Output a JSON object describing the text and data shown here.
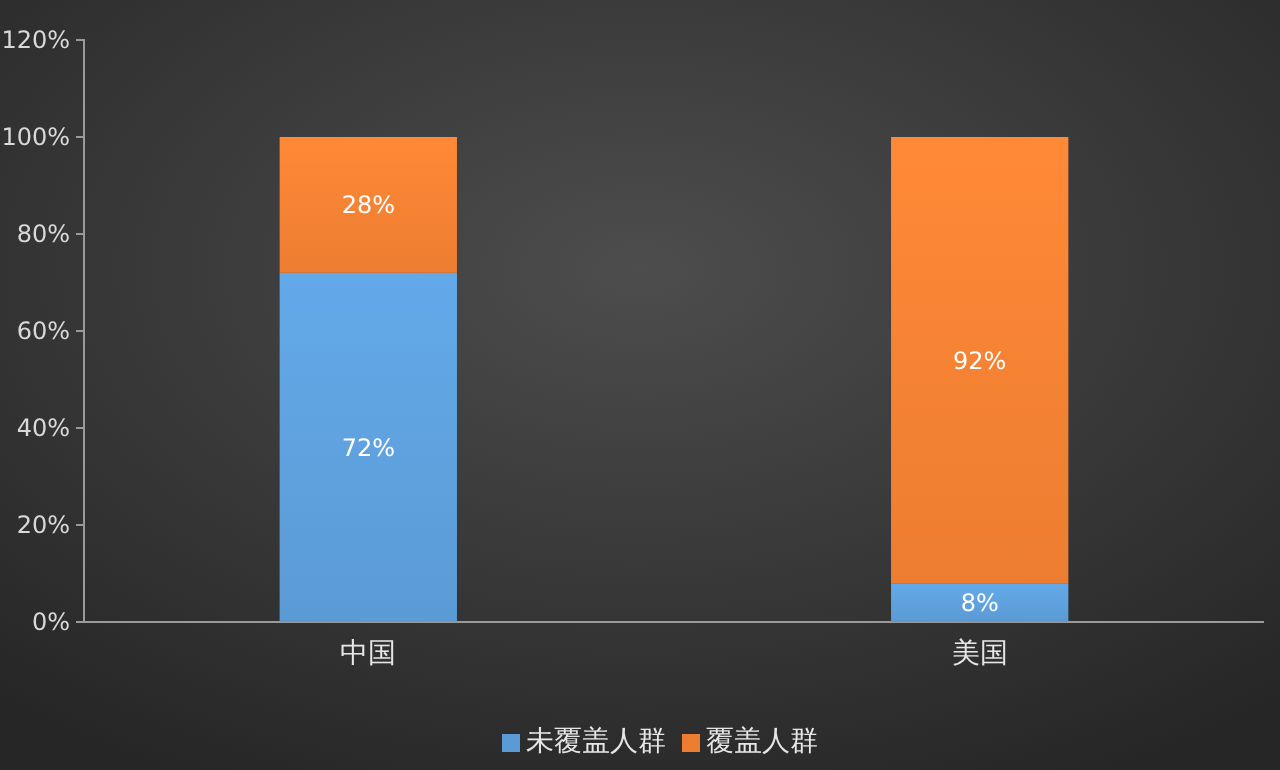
{
  "chart_data": {
    "type": "bar",
    "stacked": true,
    "categories": [
      "中国",
      "美国"
    ],
    "series": [
      {
        "name": "未覆盖人群",
        "color": "#5b9bd5",
        "values": [
          72,
          8
        ],
        "value_labels": [
          "72%",
          "8%"
        ]
      },
      {
        "name": "覆盖人群",
        "color": "#ed7d31",
        "values": [
          28,
          92
        ],
        "value_labels": [
          "28%",
          "92%"
        ]
      }
    ],
    "ylim": [
      0,
      120
    ],
    "yticks": [
      {
        "value": 0,
        "label": "0%"
      },
      {
        "value": 20,
        "label": "20%"
      },
      {
        "value": 40,
        "label": "40%"
      },
      {
        "value": 60,
        "label": "60%"
      },
      {
        "value": 80,
        "label": "80%"
      },
      {
        "value": 100,
        "label": "100%"
      },
      {
        "value": 120,
        "label": "120%"
      }
    ],
    "grid": false,
    "legend": "bottom"
  }
}
